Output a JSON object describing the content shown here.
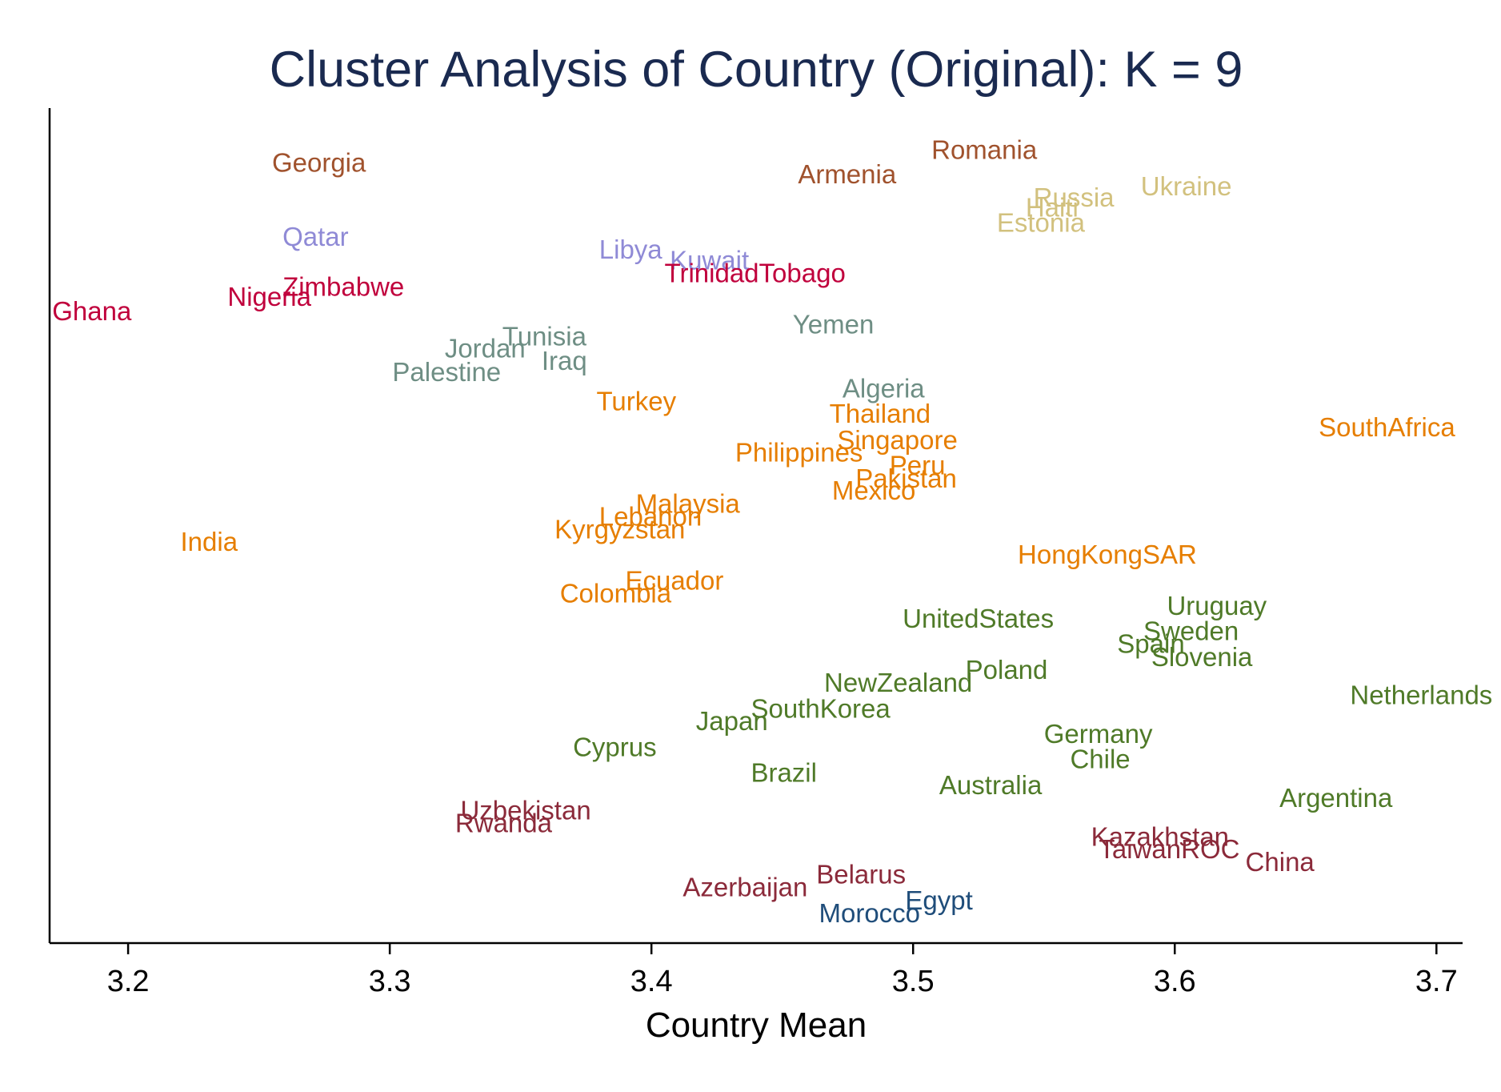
{
  "chart_data": {
    "type": "scatter",
    "title": "Cluster Analysis of Country (Original): K = 9",
    "xlabel": "Country Mean",
    "ylabel": "",
    "xlim": [
      3.17,
      3.71
    ],
    "xticks": [
      "3.2",
      "3.3",
      "3.4",
      "3.5",
      "3.6",
      "3.7"
    ],
    "y_axis_ticks_shown": false,
    "grid": false,
    "legend": "none",
    "marker": "text-label",
    "colors": {
      "title": "#1a2a50",
      "axis": "#000000",
      "c1": "#a0522d",
      "c2": "#d2c17e",
      "c3": "#8f8ad6",
      "c4": "#c0003c",
      "c5": "#6e8e84",
      "c6": "#e67e00",
      "c7": "#4f7a28",
      "c8": "#8b2a3a",
      "c9": "#1f4d7a"
    },
    "series": [
      {
        "color": "#a0522d",
        "points": [
          {
            "label": "Georgia",
            "x": 3.255,
            "y": 0.95
          },
          {
            "label": "Armenia",
            "x": 3.456,
            "y": 0.935
          },
          {
            "label": "Romania",
            "x": 3.507,
            "y": 0.966
          }
        ]
      },
      {
        "color": "#d2c17e",
        "points": [
          {
            "label": "Russia",
            "x": 3.546,
            "y": 0.906
          },
          {
            "label": "Haiti",
            "x": 3.543,
            "y": 0.893
          },
          {
            "label": "Estonia",
            "x": 3.532,
            "y": 0.874
          },
          {
            "label": "Ukraine",
            "x": 3.587,
            "y": 0.92
          }
        ]
      },
      {
        "color": "#8f8ad6",
        "points": [
          {
            "label": "Qatar",
            "x": 3.259,
            "y": 0.856
          },
          {
            "label": "Libya",
            "x": 3.38,
            "y": 0.84
          },
          {
            "label": "Kuwait",
            "x": 3.407,
            "y": 0.826
          }
        ]
      },
      {
        "color": "#c0003c",
        "points": [
          {
            "label": "TrinidadTobago",
            "x": 3.405,
            "y": 0.81
          },
          {
            "label": "Zimbabwe",
            "x": 3.259,
            "y": 0.793
          },
          {
            "label": "Nigeria",
            "x": 3.238,
            "y": 0.78
          },
          {
            "label": "Ghana",
            "x": 3.171,
            "y": 0.762
          }
        ]
      },
      {
        "color": "#6e8e84",
        "points": [
          {
            "label": "Yemen",
            "x": 3.454,
            "y": 0.745
          },
          {
            "label": "Tunisia",
            "x": 3.343,
            "y": 0.73
          },
          {
            "label": "Jordan",
            "x": 3.321,
            "y": 0.715
          },
          {
            "label": "Iraq",
            "x": 3.358,
            "y": 0.699
          },
          {
            "label": "Palestine",
            "x": 3.301,
            "y": 0.685
          },
          {
            "label": "Algeria",
            "x": 3.473,
            "y": 0.664
          }
        ]
      },
      {
        "color": "#e67e00",
        "points": [
          {
            "label": "Turkey",
            "x": 3.379,
            "y": 0.648
          },
          {
            "label": "SouthAfrica",
            "x": 3.655,
            "y": 0.615
          },
          {
            "label": "Thailand",
            "x": 3.468,
            "y": 0.632
          },
          {
            "label": "Singapore",
            "x": 3.471,
            "y": 0.599
          },
          {
            "label": "Philippines",
            "x": 3.432,
            "y": 0.583
          },
          {
            "label": "Peru",
            "x": 3.491,
            "y": 0.567
          },
          {
            "label": "Pakistan",
            "x": 3.478,
            "y": 0.55
          },
          {
            "label": "Mexico",
            "x": 3.469,
            "y": 0.535
          },
          {
            "label": "Malaysia",
            "x": 3.394,
            "y": 0.518
          },
          {
            "label": "Lebanon",
            "x": 3.38,
            "y": 0.502
          },
          {
            "label": "Kyrgyzstan",
            "x": 3.363,
            "y": 0.486
          },
          {
            "label": "India",
            "x": 3.22,
            "y": 0.47
          },
          {
            "label": "HongKongSAR",
            "x": 3.54,
            "y": 0.454
          },
          {
            "label": "Ecuador",
            "x": 3.39,
            "y": 0.421
          },
          {
            "label": "Colombia",
            "x": 3.365,
            "y": 0.405
          }
        ]
      },
      {
        "color": "#4f7a28",
        "points": [
          {
            "label": "Uruguay",
            "x": 3.597,
            "y": 0.389
          },
          {
            "label": "UnitedStates",
            "x": 3.496,
            "y": 0.373
          },
          {
            "label": "Sweden",
            "x": 3.588,
            "y": 0.357
          },
          {
            "label": "Spain",
            "x": 3.578,
            "y": 0.341
          },
          {
            "label": "Slovenia",
            "x": 3.591,
            "y": 0.324
          },
          {
            "label": "Poland",
            "x": 3.52,
            "y": 0.308
          },
          {
            "label": "NewZealand",
            "x": 3.466,
            "y": 0.292
          },
          {
            "label": "Netherlands",
            "x": 3.667,
            "y": 0.276
          },
          {
            "label": "SouthKorea",
            "x": 3.438,
            "y": 0.259
          },
          {
            "label": "Japan",
            "x": 3.417,
            "y": 0.243
          },
          {
            "label": "Germany",
            "x": 3.55,
            "y": 0.227
          },
          {
            "label": "Cyprus",
            "x": 3.37,
            "y": 0.21
          },
          {
            "label": "Chile",
            "x": 3.56,
            "y": 0.195
          },
          {
            "label": "Brazil",
            "x": 3.438,
            "y": 0.178
          },
          {
            "label": "Australia",
            "x": 3.51,
            "y": 0.162
          },
          {
            "label": "Argentina",
            "x": 3.64,
            "y": 0.146
          }
        ]
      },
      {
        "color": "#8b2a3a",
        "points": [
          {
            "label": "Uzbekistan",
            "x": 3.327,
            "y": 0.13
          },
          {
            "label": "Rwanda",
            "x": 3.325,
            "y": 0.114
          },
          {
            "label": "Kazakhstan",
            "x": 3.568,
            "y": 0.097
          },
          {
            "label": "TaiwanROC",
            "x": 3.571,
            "y": 0.081
          },
          {
            "label": "China",
            "x": 3.627,
            "y": 0.065
          },
          {
            "label": "Belarus",
            "x": 3.463,
            "y": 0.049
          },
          {
            "label": "Azerbaijan",
            "x": 3.412,
            "y": 0.033
          }
        ]
      },
      {
        "color": "#1f4d7a",
        "points": [
          {
            "label": "Egypt",
            "x": 3.497,
            "y": 0.016
          },
          {
            "label": "Morocco",
            "x": 3.464,
            "y": 0.0
          }
        ]
      }
    ]
  }
}
